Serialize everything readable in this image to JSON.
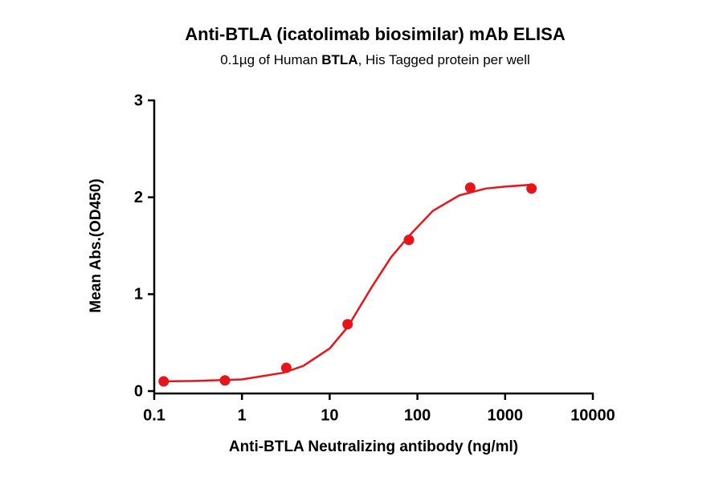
{
  "chart_data": {
    "type": "scatter",
    "title": "Anti-BTLA (icatolimab biosimilar) mAb ELISA",
    "subtitle": [
      "0.1µg of Human ",
      "BTLA",
      ", His Tagged protein per well"
    ],
    "subtitle_bold": [
      false,
      true,
      false
    ],
    "x_label": "Anti-BTLA Neutralizing antibody (ng/ml)",
    "y_label": "Mean Abs.(OD450)",
    "x_scale": "log",
    "xlim": [
      0.1,
      10000
    ],
    "xticks": [
      0.1,
      1,
      10,
      100,
      1000,
      10000
    ],
    "ylim": [
      0,
      3
    ],
    "yticks": [
      0,
      1,
      2,
      3
    ],
    "grid": false,
    "points": {
      "color": "#e8141b",
      "x": [
        0.128,
        0.64,
        3.2,
        16,
        80,
        400,
        2000
      ],
      "values": [
        0.1,
        0.11,
        0.24,
        0.69,
        1.56,
        2.1,
        2.09
      ]
    },
    "fit": {
      "color": "#e8141b",
      "x": [
        0.128,
        0.3,
        1,
        3,
        5,
        10,
        16,
        30,
        50,
        80,
        150,
        300,
        600,
        1000,
        2000
      ],
      "values": [
        0.1,
        0.105,
        0.12,
        0.19,
        0.26,
        0.44,
        0.66,
        1.07,
        1.38,
        1.6,
        1.86,
        2.02,
        2.09,
        2.11,
        2.13
      ]
    }
  }
}
